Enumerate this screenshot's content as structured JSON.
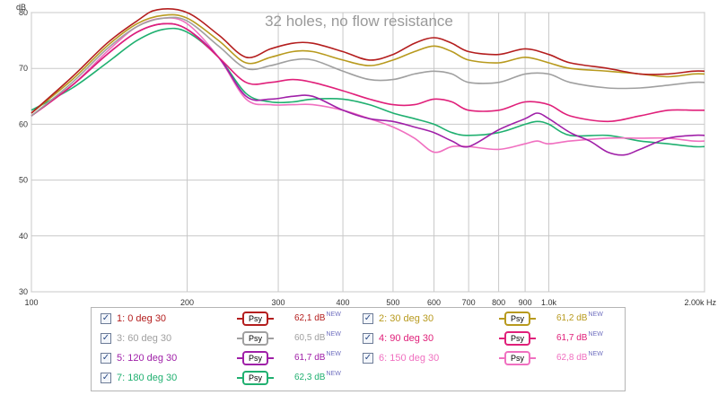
{
  "chart_data": {
    "type": "line",
    "title": "32 holes, no flow resistance",
    "ylabel": "dB",
    "xunit": "Hz",
    "xscale": "log",
    "xlim": [
      100,
      2000
    ],
    "ylim": [
      30,
      80
    ],
    "yticks": [
      30,
      40,
      50,
      60,
      70,
      80
    ],
    "xticks": [
      {
        "v": 100,
        "label": "100"
      },
      {
        "v": 200,
        "label": "200"
      },
      {
        "v": 300,
        "label": "300"
      },
      {
        "v": 400,
        "label": "400"
      },
      {
        "v": 500,
        "label": "500"
      },
      {
        "v": 600,
        "label": "600"
      },
      {
        "v": 700,
        "label": "700"
      },
      {
        "v": 800,
        "label": "800"
      },
      {
        "v": 900,
        "label": "900"
      },
      {
        "v": 1000,
        "label": "1,0k"
      },
      {
        "v": 2000,
        "label": "2,00k Hz"
      }
    ],
    "psy_label": "Psy",
    "new_label": "NEW",
    "series": [
      {
        "name": "1: 0 deg 30",
        "color": "#b41e1e",
        "value": "62,1 dB",
        "checked": true,
        "points": [
          [
            100,
            62
          ],
          [
            120,
            68.5
          ],
          [
            140,
            74.5
          ],
          [
            160,
            78.5
          ],
          [
            175,
            80.5
          ],
          [
            200,
            80
          ],
          [
            230,
            76
          ],
          [
            260,
            72
          ],
          [
            290,
            73.5
          ],
          [
            320,
            74.5
          ],
          [
            350,
            74.5
          ],
          [
            400,
            73
          ],
          [
            450,
            71.5
          ],
          [
            500,
            72.5
          ],
          [
            550,
            74.5
          ],
          [
            600,
            75.5
          ],
          [
            650,
            74.5
          ],
          [
            700,
            73
          ],
          [
            800,
            72.5
          ],
          [
            900,
            73.5
          ],
          [
            1000,
            72.5
          ],
          [
            1100,
            71
          ],
          [
            1300,
            70
          ],
          [
            1500,
            69
          ],
          [
            1700,
            69
          ],
          [
            1900,
            69.5
          ],
          [
            2000,
            69.5
          ]
        ]
      },
      {
        "name": "2: 30 deg 30",
        "color": "#b89a1e",
        "value": "61,2 dB",
        "checked": true,
        "points": [
          [
            100,
            62
          ],
          [
            120,
            68
          ],
          [
            140,
            74
          ],
          [
            160,
            78
          ],
          [
            180,
            79.5
          ],
          [
            200,
            79
          ],
          [
            230,
            75
          ],
          [
            260,
            71
          ],
          [
            290,
            72
          ],
          [
            320,
            73
          ],
          [
            350,
            73
          ],
          [
            400,
            71.5
          ],
          [
            450,
            70.5
          ],
          [
            500,
            71.5
          ],
          [
            550,
            73
          ],
          [
            600,
            74
          ],
          [
            650,
            73
          ],
          [
            700,
            71.5
          ],
          [
            800,
            71
          ],
          [
            900,
            72
          ],
          [
            1000,
            71
          ],
          [
            1100,
            70
          ],
          [
            1300,
            69.5
          ],
          [
            1500,
            69
          ],
          [
            1700,
            68.5
          ],
          [
            1900,
            69
          ],
          [
            2000,
            69
          ]
        ]
      },
      {
        "name": "3: 60 deg 30",
        "color": "#a0a0a0",
        "value": "60,5 dB",
        "checked": true,
        "points": [
          [
            100,
            61.5
          ],
          [
            120,
            67.5
          ],
          [
            140,
            73.5
          ],
          [
            160,
            77.5
          ],
          [
            180,
            79
          ],
          [
            200,
            78.5
          ],
          [
            230,
            74
          ],
          [
            260,
            70
          ],
          [
            290,
            70.5
          ],
          [
            320,
            71.5
          ],
          [
            350,
            71.5
          ],
          [
            400,
            69.5
          ],
          [
            450,
            68
          ],
          [
            500,
            68
          ],
          [
            550,
            69
          ],
          [
            600,
            69.5
          ],
          [
            650,
            69
          ],
          [
            700,
            67.5
          ],
          [
            800,
            67.5
          ],
          [
            900,
            69
          ],
          [
            1000,
            69
          ],
          [
            1100,
            67.5
          ],
          [
            1300,
            66.5
          ],
          [
            1500,
            66.5
          ],
          [
            1700,
            67
          ],
          [
            1900,
            67.5
          ],
          [
            2000,
            67.5
          ]
        ]
      },
      {
        "name": "4: 90 deg 30",
        "color": "#e0207a",
        "value": "61,7 dB",
        "checked": true,
        "points": [
          [
            100,
            61.5
          ],
          [
            120,
            67
          ],
          [
            140,
            72.5
          ],
          [
            160,
            76.5
          ],
          [
            180,
            78
          ],
          [
            200,
            77
          ],
          [
            230,
            72
          ],
          [
            260,
            67.5
          ],
          [
            290,
            67.5
          ],
          [
            320,
            68
          ],
          [
            350,
            67.5
          ],
          [
            400,
            66
          ],
          [
            450,
            64.5
          ],
          [
            500,
            63.5
          ],
          [
            550,
            63.5
          ],
          [
            600,
            64.5
          ],
          [
            650,
            64
          ],
          [
            700,
            62.5
          ],
          [
            800,
            62.5
          ],
          [
            900,
            64
          ],
          [
            1000,
            63.5
          ],
          [
            1100,
            61.5
          ],
          [
            1300,
            60.5
          ],
          [
            1500,
            61.5
          ],
          [
            1700,
            62.5
          ],
          [
            1900,
            62.5
          ],
          [
            2000,
            62.5
          ]
        ]
      },
      {
        "name": "5: 120 deg 30",
        "color": "#a020a8",
        "value": "61,7 dB",
        "checked": true,
        "points": [
          [
            100,
            61.5
          ],
          [
            120,
            67
          ],
          [
            140,
            72.5
          ],
          [
            160,
            76.5
          ],
          [
            180,
            78
          ],
          [
            200,
            77
          ],
          [
            230,
            72
          ],
          [
            260,
            65
          ],
          [
            290,
            64.5
          ],
          [
            320,
            65
          ],
          [
            350,
            65
          ],
          [
            400,
            62.5
          ],
          [
            450,
            61
          ],
          [
            500,
            60.5
          ],
          [
            550,
            59.5
          ],
          [
            600,
            58.5
          ],
          [
            650,
            57
          ],
          [
            700,
            56
          ],
          [
            800,
            59
          ],
          [
            900,
            61
          ],
          [
            950,
            62
          ],
          [
            1000,
            61
          ],
          [
            1100,
            58.5
          ],
          [
            1200,
            57
          ],
          [
            1300,
            55
          ],
          [
            1400,
            54.5
          ],
          [
            1500,
            55.5
          ],
          [
            1700,
            57.5
          ],
          [
            1900,
            58
          ],
          [
            2000,
            58
          ]
        ]
      },
      {
        "name": "6: 150 deg 30",
        "color": "#f070c0",
        "value": "62,8 dB",
        "checked": true,
        "points": [
          [
            100,
            61.5
          ],
          [
            120,
            67
          ],
          [
            140,
            73
          ],
          [
            160,
            77.5
          ],
          [
            180,
            79
          ],
          [
            200,
            78
          ],
          [
            230,
            72
          ],
          [
            260,
            64.5
          ],
          [
            290,
            63.5
          ],
          [
            320,
            63.5
          ],
          [
            350,
            63.5
          ],
          [
            400,
            62.5
          ],
          [
            450,
            61
          ],
          [
            500,
            59.5
          ],
          [
            550,
            57.5
          ],
          [
            600,
            55
          ],
          [
            650,
            56
          ],
          [
            700,
            56
          ],
          [
            800,
            55.5
          ],
          [
            900,
            56.5
          ],
          [
            950,
            57
          ],
          [
            1000,
            56.5
          ],
          [
            1100,
            57
          ],
          [
            1300,
            57.5
          ],
          [
            1500,
            57.5
          ],
          [
            1700,
            57.5
          ],
          [
            1900,
            57
          ],
          [
            2000,
            57
          ]
        ]
      },
      {
        "name": "7: 180 deg 30",
        "color": "#20b070",
        "value": "62,3 dB",
        "checked": true,
        "points": [
          [
            100,
            62.5
          ],
          [
            120,
            66.5
          ],
          [
            140,
            71
          ],
          [
            160,
            75
          ],
          [
            180,
            77
          ],
          [
            200,
            76.5
          ],
          [
            230,
            72
          ],
          [
            260,
            65.5
          ],
          [
            290,
            64
          ],
          [
            320,
            64
          ],
          [
            350,
            64.5
          ],
          [
            400,
            64.5
          ],
          [
            450,
            63.5
          ],
          [
            500,
            62
          ],
          [
            550,
            61
          ],
          [
            600,
            60
          ],
          [
            650,
            58.5
          ],
          [
            700,
            58
          ],
          [
            800,
            58.5
          ],
          [
            900,
            60
          ],
          [
            950,
            60.5
          ],
          [
            1000,
            60
          ],
          [
            1100,
            58
          ],
          [
            1300,
            58
          ],
          [
            1500,
            57
          ],
          [
            1700,
            56.5
          ],
          [
            1900,
            56
          ],
          [
            2000,
            56
          ]
        ]
      }
    ]
  }
}
